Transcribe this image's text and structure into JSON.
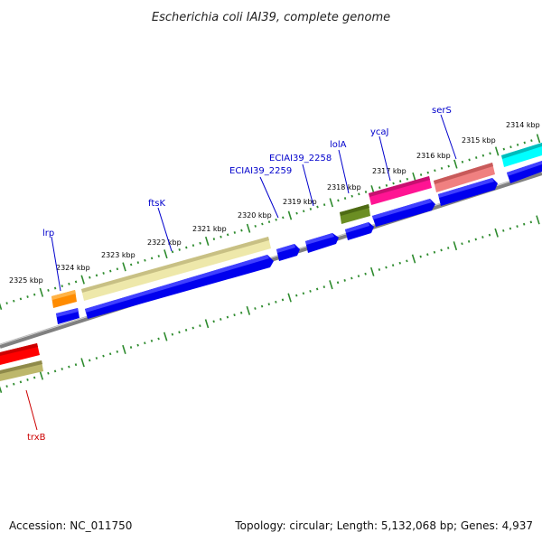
{
  "title": "Escherichia coli IAI39, complete genome",
  "accession": "Accession: NC_011750",
  "summary": "Topology: circular; Length: 5,132,068 bp; Genes: 4,937",
  "kbp_labels": [
    "2325 kbp",
    "2324 kbp",
    "2323 kbp",
    "2322 kbp",
    "2321 kbp",
    "2320 kbp",
    "2319 kbp",
    "2318 kbp",
    "2317 kbp",
    "2316 kbp",
    "2315 kbp",
    "2314 kbp"
  ],
  "gene_labels": {
    "lrp": "lrp",
    "ftsK": "ftsK",
    "ecia2259": "ECIAI39_2259",
    "ecia2258": "ECIAI39_2258",
    "lolA": "lolA",
    "ycaJ": "ycaJ",
    "serS": "serS",
    "trxB": "trxB"
  },
  "colors": {
    "gene_label_blue": "#0000cc",
    "gene_label_red": "#cc0000",
    "cds_blue": "#0000ee",
    "tick_green": "#2e8b2e",
    "backbone": "#808080"
  }
}
